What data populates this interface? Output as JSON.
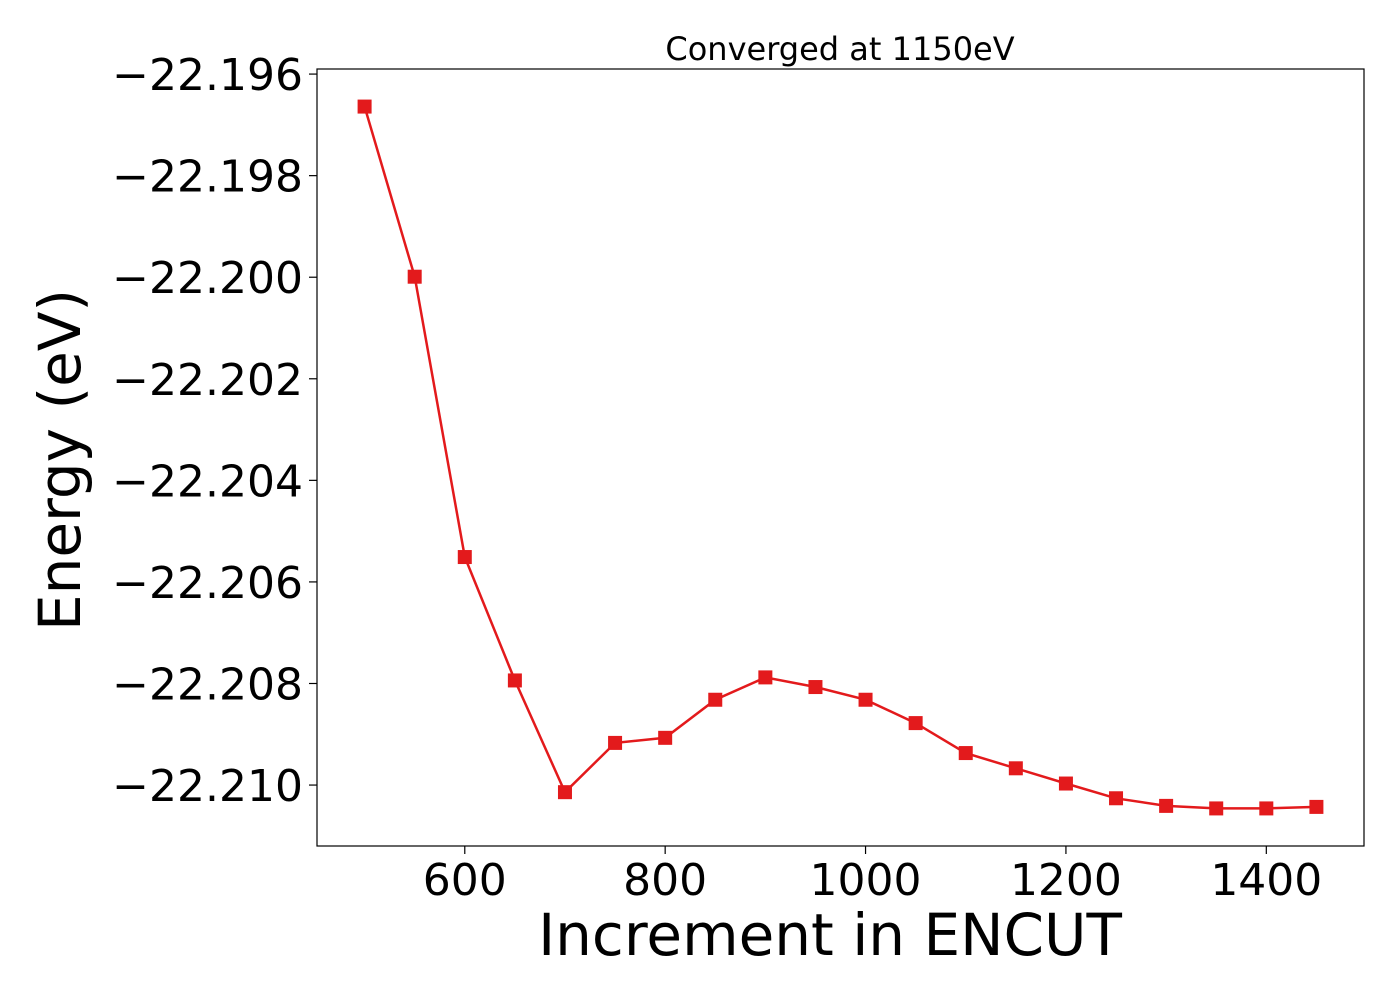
{
  "chart_data": {
    "type": "line",
    "title": "Converged at 1150eV",
    "xlabel": "Increment in ENCUT",
    "ylabel": "Energy (eV)",
    "xlim": [
      452.5,
      1497.5
    ],
    "ylim": [
      -22.2112,
      -22.1959
    ],
    "xticks": [
      600,
      800,
      1000,
      1200,
      1400
    ],
    "xtick_labels": [
      "600",
      "800",
      "1000",
      "1200",
      "1400"
    ],
    "yticks": [
      -22.196,
      -22.198,
      -22.2,
      -22.202,
      -22.204,
      -22.206,
      -22.208,
      -22.21
    ],
    "ytick_labels": [
      "−22.196",
      "−22.198",
      "−22.200",
      "−22.202",
      "−22.204",
      "−22.206",
      "−22.208",
      "−22.210"
    ],
    "grid": false,
    "series": [
      {
        "color": "#e31a1c",
        "marker": "square",
        "x": [
          500,
          550,
          600,
          650,
          700,
          750,
          800,
          850,
          900,
          950,
          1000,
          1050,
          1100,
          1150,
          1200,
          1250,
          1300,
          1350,
          1400,
          1450
        ],
        "y": [
          -22.19664,
          -22.19999,
          -22.20551,
          -22.20794,
          -22.21014,
          -22.20917,
          -22.20907,
          -22.20832,
          -22.20788,
          -22.20807,
          -22.20832,
          -22.20878,
          -22.20937,
          -22.20967,
          -22.20997,
          -22.21026,
          -22.21041,
          -22.21046,
          -22.21046,
          -22.21043
        ]
      }
    ]
  }
}
